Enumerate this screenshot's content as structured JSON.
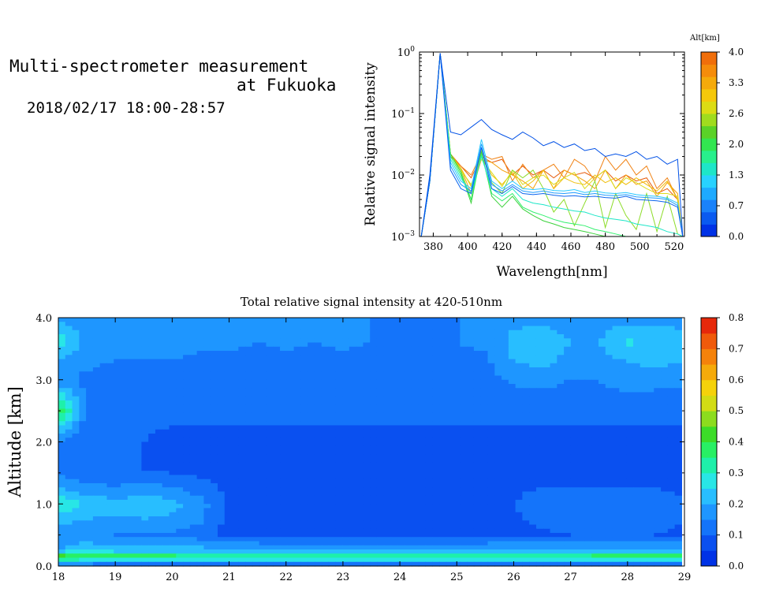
{
  "header": {
    "title_line1": "Multi-spectrometer measurement",
    "title_line2": "at Fukuoka",
    "date_range": "2018/02/17 18:00-28:57"
  },
  "chart_data": [
    {
      "type": "line",
      "title": "",
      "xlabel": "Wavelength[nm]",
      "ylabel": "Relative signal intensity",
      "yscale": "log",
      "xlim": [
        372,
        526
      ],
      "ylim": [
        0.001,
        1
      ],
      "xticks": [
        380,
        400,
        420,
        440,
        460,
        480,
        500,
        520
      ],
      "yticks": [
        {
          "value": 1,
          "label": "10^0"
        },
        {
          "value": 0.1,
          "label": "10^-1"
        },
        {
          "value": 0.01,
          "label": "10^-2"
        },
        {
          "value": 0.001,
          "label": "10^-3"
        }
      ],
      "x": [
        373,
        378,
        384,
        390,
        396,
        402,
        408,
        414,
        420,
        426,
        432,
        438,
        444,
        450,
        456,
        462,
        468,
        474,
        480,
        486,
        492,
        498,
        504,
        510,
        516,
        522,
        525
      ],
      "series": [
        {
          "altitude_km": 0.0,
          "color": "#0050e6",
          "values": [
            0.0006,
            0.01,
            0.95,
            0.05,
            0.045,
            0.06,
            0.08,
            0.055,
            0.045,
            0.038,
            0.05,
            0.04,
            0.03,
            0.035,
            0.028,
            0.032,
            0.025,
            0.027,
            0.02,
            0.022,
            0.02,
            0.024,
            0.018,
            0.02,
            0.015,
            0.018,
            0.001
          ]
        },
        {
          "altitude_km": 0.3,
          "color": "#0a64ee",
          "values": [
            0.0006,
            0.008,
            0.95,
            0.012,
            0.006,
            0.005,
            0.028,
            0.006,
            0.005,
            0.0065,
            0.005,
            0.0048,
            0.005,
            0.0047,
            0.0045,
            0.0046,
            0.0044,
            0.0045,
            0.0043,
            0.0042,
            0.0045,
            0.004,
            0.0039,
            0.0038,
            0.0036,
            0.003,
            0.001
          ]
        },
        {
          "altitude_km": 0.7,
          "color": "#1e9bff",
          "values": [
            0.0006,
            0.008,
            0.95,
            0.014,
            0.007,
            0.0055,
            0.032,
            0.007,
            0.0055,
            0.007,
            0.0055,
            0.0052,
            0.0055,
            0.0051,
            0.005,
            0.0052,
            0.0048,
            0.005,
            0.0047,
            0.0046,
            0.0048,
            0.0044,
            0.0043,
            0.0042,
            0.004,
            0.0032,
            0.001
          ]
        },
        {
          "altitude_km": 1.0,
          "color": "#28c8ff",
          "values": [
            0.0006,
            0.008,
            0.95,
            0.016,
            0.008,
            0.006,
            0.038,
            0.008,
            0.006,
            0.008,
            0.006,
            0.0058,
            0.006,
            0.0056,
            0.0055,
            0.0058,
            0.0052,
            0.0055,
            0.0051,
            0.005,
            0.0052,
            0.0048,
            0.0046,
            0.0045,
            0.0042,
            0.0035,
            0.001
          ]
        },
        {
          "altitude_km": 1.3,
          "color": "#1ee6c8",
          "values": [
            0.0006,
            0.008,
            0.95,
            0.018,
            0.009,
            0.005,
            0.02,
            0.006,
            0.0045,
            0.006,
            0.004,
            0.0035,
            0.0033,
            0.003,
            0.0028,
            0.0026,
            0.0025,
            0.0022,
            0.002,
            0.0019,
            0.0018,
            0.0016,
            0.0015,
            0.0014,
            0.0012,
            0.0011,
            0.001
          ]
        },
        {
          "altitude_km": 1.6,
          "color": "#32f06e",
          "values": [
            0.0006,
            0.008,
            0.95,
            0.02,
            0.01,
            0.004,
            0.022,
            0.005,
            0.0038,
            0.005,
            0.003,
            0.0025,
            0.0022,
            0.0019,
            0.0017,
            0.0016,
            0.0015,
            0.0013,
            0.0012,
            0.0011,
            0.001,
            0.001,
            0.001,
            0.001,
            0.001,
            0.001,
            0.001
          ]
        },
        {
          "altitude_km": 2.0,
          "color": "#3cd23c",
          "values": [
            0.0006,
            0.008,
            0.95,
            0.022,
            0.011,
            0.0035,
            0.024,
            0.0045,
            0.003,
            0.0045,
            0.0028,
            0.0022,
            0.0018,
            0.0016,
            0.0014,
            0.0013,
            0.0012,
            0.0011,
            0.001,
            0.001,
            0.001,
            0.001,
            0.001,
            0.001,
            0.001,
            0.001,
            0.001
          ]
        },
        {
          "altitude_km": 2.3,
          "color": "#8cdc28",
          "values": [
            0.0006,
            0.008,
            0.95,
            0.022,
            0.012,
            0.004,
            0.026,
            0.0075,
            0.005,
            0.012,
            0.009,
            0.012,
            0.006,
            0.0025,
            0.004,
            0.0015,
            0.0035,
            0.008,
            0.0014,
            0.005,
            0.0022,
            0.0013,
            0.005,
            0.0012,
            0.0045,
            0.0011,
            0.001
          ]
        },
        {
          "altitude_km": 2.6,
          "color": "#dcdc1e",
          "values": [
            0.0006,
            0.008,
            0.95,
            0.022,
            0.012,
            0.007,
            0.018,
            0.011,
            0.0065,
            0.012,
            0.007,
            0.009,
            0.01,
            0.007,
            0.009,
            0.011,
            0.006,
            0.009,
            0.012,
            0.006,
            0.009,
            0.0075,
            0.006,
            0.005,
            0.005,
            0.0045,
            0.001
          ]
        },
        {
          "altitude_km": 3.0,
          "color": "#f0be0a",
          "values": [
            0.0006,
            0.008,
            0.95,
            0.022,
            0.013,
            0.0065,
            0.02,
            0.01,
            0.007,
            0.011,
            0.006,
            0.008,
            0.012,
            0.006,
            0.009,
            0.0075,
            0.007,
            0.01,
            0.0075,
            0.009,
            0.007,
            0.009,
            0.007,
            0.0055,
            0.008,
            0.004,
            0.001
          ]
        },
        {
          "altitude_km": 3.3,
          "color": "#f5a00a",
          "values": [
            0.0006,
            0.008,
            0.95,
            0.022,
            0.013,
            0.005,
            0.018,
            0.016,
            0.012,
            0.01,
            0.008,
            0.006,
            0.012,
            0.006,
            0.012,
            0.01,
            0.008,
            0.006,
            0.012,
            0.006,
            0.01,
            0.007,
            0.008,
            0.0045,
            0.0075,
            0.005,
            0.001
          ]
        },
        {
          "altitude_km": 3.6,
          "color": "#f08214",
          "values": [
            0.0006,
            0.008,
            0.95,
            0.02,
            0.014,
            0.01,
            0.022,
            0.018,
            0.02,
            0.008,
            0.015,
            0.009,
            0.012,
            0.015,
            0.009,
            0.018,
            0.014,
            0.008,
            0.02,
            0.012,
            0.018,
            0.01,
            0.014,
            0.006,
            0.009,
            0.004,
            0.001
          ]
        },
        {
          "altitude_km": 4.0,
          "color": "#e65a0a",
          "values": [
            0.0006,
            0.008,
            0.95,
            0.022,
            0.014,
            0.009,
            0.02,
            0.016,
            0.018,
            0.01,
            0.014,
            0.01,
            0.012,
            0.009,
            0.012,
            0.01,
            0.011,
            0.009,
            0.012,
            0.008,
            0.01,
            0.008,
            0.009,
            0.005,
            0.006,
            0.004,
            0.001
          ]
        }
      ],
      "colorbar": {
        "label": "Alt[km]",
        "min": 0.0,
        "max": 4.0,
        "tick_labels": [
          "0.0",
          "0.7",
          "1.3",
          "2.0",
          "2.6",
          "3.3",
          "4.0"
        ],
        "colors": [
          "#0032e6",
          "#0a5af0",
          "#1a82fa",
          "#1eaaff",
          "#28d2ff",
          "#1ee6c8",
          "#28f08c",
          "#32e650",
          "#5ad228",
          "#a0dc1e",
          "#dcdc14",
          "#f5c80a",
          "#f5aa0a",
          "#f58c0a",
          "#f06e0a"
        ]
      }
    },
    {
      "type": "heatmap",
      "title": "Total relative signal intensity at 420-510nm",
      "xlabel": "",
      "ylabel": "Altitude [km]",
      "xlim": [
        18,
        29
      ],
      "ylim": [
        0,
        4.0
      ],
      "xticks": [
        18,
        19,
        20,
        21,
        22,
        23,
        24,
        25,
        26,
        27,
        28,
        29
      ],
      "yticks": [
        {
          "value": 0,
          "label": "0.0"
        },
        {
          "value": 1,
          "label": "1.0"
        },
        {
          "value": 2,
          "label": "2.0"
        },
        {
          "value": 3,
          "label": "3.0"
        },
        {
          "value": 4,
          "label": "4.0"
        }
      ],
      "data_end_x": 28.95,
      "columns_x": [
        18.0,
        18.5,
        19.0,
        19.5,
        20.0,
        20.5,
        21.0,
        21.5,
        22.0,
        22.5,
        23.0,
        23.5,
        24.0,
        24.5,
        25.0,
        25.5,
        26.0,
        26.5,
        27.0,
        27.5,
        28.0,
        28.5,
        28.95
      ],
      "rows_altitude_km": [
        0.0,
        0.15,
        0.25,
        0.5,
        0.75,
        1.0,
        1.25,
        1.5,
        2.0,
        2.5,
        3.0,
        3.3,
        3.6,
        4.0
      ],
      "values": [
        [
          0.08,
          0.08,
          0.08,
          0.08,
          0.08,
          0.08,
          0.08,
          0.08,
          0.08,
          0.08,
          0.08,
          0.08,
          0.08,
          0.08,
          0.08,
          0.08,
          0.08,
          0.08,
          0.08,
          0.08,
          0.08,
          0.08,
          0.08
        ],
        [
          0.45,
          0.4,
          0.38,
          0.38,
          0.38,
          0.36,
          0.35,
          0.35,
          0.35,
          0.35,
          0.35,
          0.35,
          0.35,
          0.35,
          0.35,
          0.35,
          0.35,
          0.35,
          0.36,
          0.38,
          0.38,
          0.38,
          0.38
        ],
        [
          0.2,
          0.24,
          0.22,
          0.22,
          0.22,
          0.22,
          0.22,
          0.22,
          0.22,
          0.22,
          0.22,
          0.22,
          0.22,
          0.22,
          0.22,
          0.22,
          0.22,
          0.22,
          0.22,
          0.22,
          0.22,
          0.22,
          0.22
        ],
        [
          0.18,
          0.16,
          0.15,
          0.14,
          0.14,
          0.12,
          0.08,
          0.07,
          0.07,
          0.07,
          0.07,
          0.07,
          0.07,
          0.07,
          0.07,
          0.07,
          0.08,
          0.09,
          0.1,
          0.1,
          0.1,
          0.1,
          0.09
        ],
        [
          0.22,
          0.2,
          0.19,
          0.2,
          0.19,
          0.16,
          0.08,
          0.07,
          0.07,
          0.07,
          0.07,
          0.07,
          0.07,
          0.07,
          0.07,
          0.07,
          0.09,
          0.12,
          0.13,
          0.13,
          0.13,
          0.12,
          0.1
        ],
        [
          0.3,
          0.24,
          0.22,
          0.23,
          0.22,
          0.17,
          0.09,
          0.08,
          0.08,
          0.08,
          0.08,
          0.08,
          0.08,
          0.08,
          0.08,
          0.08,
          0.1,
          0.13,
          0.14,
          0.14,
          0.14,
          0.13,
          0.11
        ],
        [
          0.2,
          0.17,
          0.16,
          0.17,
          0.16,
          0.12,
          0.09,
          0.08,
          0.08,
          0.08,
          0.08,
          0.08,
          0.08,
          0.08,
          0.08,
          0.08,
          0.09,
          0.1,
          0.1,
          0.1,
          0.1,
          0.1,
          0.09
        ],
        [
          0.14,
          0.11,
          0.1,
          0.1,
          0.1,
          0.09,
          0.08,
          0.08,
          0.08,
          0.08,
          0.08,
          0.08,
          0.08,
          0.08,
          0.08,
          0.08,
          0.08,
          0.08,
          0.08,
          0.08,
          0.08,
          0.08,
          0.08
        ],
        [
          0.15,
          0.11,
          0.1,
          0.1,
          0.09,
          0.09,
          0.09,
          0.09,
          0.09,
          0.09,
          0.09,
          0.09,
          0.09,
          0.09,
          0.09,
          0.09,
          0.09,
          0.09,
          0.09,
          0.09,
          0.09,
          0.09,
          0.09
        ],
        [
          0.4,
          0.13,
          0.11,
          0.11,
          0.11,
          0.11,
          0.11,
          0.11,
          0.11,
          0.11,
          0.11,
          0.11,
          0.11,
          0.11,
          0.11,
          0.11,
          0.11,
          0.11,
          0.11,
          0.11,
          0.11,
          0.11,
          0.11
        ],
        [
          0.16,
          0.14,
          0.13,
          0.13,
          0.13,
          0.13,
          0.13,
          0.12,
          0.13,
          0.12,
          0.13,
          0.12,
          0.13,
          0.12,
          0.13,
          0.13,
          0.16,
          0.17,
          0.15,
          0.15,
          0.18,
          0.17,
          0.16
        ],
        [
          0.18,
          0.16,
          0.15,
          0.15,
          0.15,
          0.14,
          0.14,
          0.13,
          0.14,
          0.13,
          0.14,
          0.13,
          0.13,
          0.13,
          0.13,
          0.14,
          0.2,
          0.22,
          0.18,
          0.18,
          0.2,
          0.22,
          0.2
        ],
        [
          0.3,
          0.18,
          0.17,
          0.17,
          0.17,
          0.16,
          0.16,
          0.15,
          0.16,
          0.15,
          0.16,
          0.15,
          0.15,
          0.15,
          0.15,
          0.16,
          0.22,
          0.24,
          0.2,
          0.2,
          0.26,
          0.24,
          0.22
        ],
        [
          0.18,
          0.16,
          0.15,
          0.15,
          0.15,
          0.15,
          0.15,
          0.15,
          0.15,
          0.15,
          0.15,
          0.15,
          0.15,
          0.15,
          0.15,
          0.15,
          0.18,
          0.18,
          0.17,
          0.17,
          0.18,
          0.18,
          0.18
        ]
      ],
      "colorbar": {
        "min": 0.0,
        "max": 0.8,
        "tick_labels": [
          "0.0",
          "0.1",
          "0.2",
          "0.3",
          "0.4",
          "0.5",
          "0.6",
          "0.7",
          "0.8"
        ],
        "colors": [
          "#0032e6",
          "#0a50f0",
          "#1474fa",
          "#1e96ff",
          "#28beff",
          "#28e6e6",
          "#1ef0aa",
          "#28f064",
          "#3cdc28",
          "#8cdc1e",
          "#d2dc14",
          "#f5d20a",
          "#f5aa0a",
          "#f5820a",
          "#f05a0a",
          "#e6280a"
        ]
      }
    }
  ]
}
